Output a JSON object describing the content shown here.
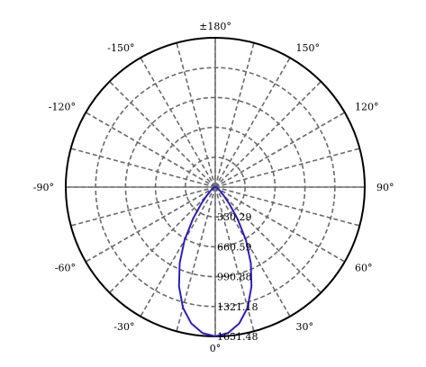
{
  "chart_data": {
    "type": "polar",
    "zero_direction": "bottom",
    "radial_max": 1651.48,
    "grid": true,
    "grid_style": "dashed",
    "angle_ticks": [
      {
        "angle": 180,
        "label": "±180°"
      },
      {
        "angle": 150,
        "label": "150°"
      },
      {
        "angle": 120,
        "label": "120°"
      },
      {
        "angle": 90,
        "label": "90°"
      },
      {
        "angle": 60,
        "label": "60°"
      },
      {
        "angle": 30,
        "label": "30°"
      },
      {
        "angle": 0,
        "label": "0°"
      },
      {
        "angle": -30,
        "label": "-30°"
      },
      {
        "angle": -60,
        "label": "-60°"
      },
      {
        "angle": -90,
        "label": "-90°"
      },
      {
        "angle": -120,
        "label": "-120°"
      },
      {
        "angle": -150,
        "label": "-150°"
      }
    ],
    "radial_ticks": [
      {
        "value": 330.29,
        "label": "330.29"
      },
      {
        "value": 660.59,
        "label": "660.59"
      },
      {
        "value": 990.88,
        "label": "990.88"
      },
      {
        "value": 1321.18,
        "label": "1321.18"
      },
      {
        "value": 1651.48,
        "label": "1651.48"
      }
    ],
    "series": [
      {
        "color": "#2a1fc4",
        "angles": [
          -90,
          -85,
          -80,
          -75,
          -70,
          -65,
          -60,
          -55,
          -50,
          -45,
          -40,
          -35,
          -30,
          -25,
          -20,
          -15,
          -10,
          -5,
          0,
          5,
          10,
          15,
          20,
          25,
          30,
          35,
          40,
          45,
          50,
          55,
          60,
          65,
          70,
          75,
          80,
          85,
          90
        ],
        "values": [
          12,
          14,
          16,
          18,
          22,
          27,
          35,
          50,
          78,
          130,
          240,
          430,
          680,
          930,
          1170,
          1380,
          1530,
          1620,
          1650,
          1620,
          1530,
          1380,
          1170,
          930,
          680,
          430,
          240,
          130,
          78,
          50,
          35,
          27,
          22,
          18,
          16,
          14,
          12
        ]
      }
    ]
  }
}
